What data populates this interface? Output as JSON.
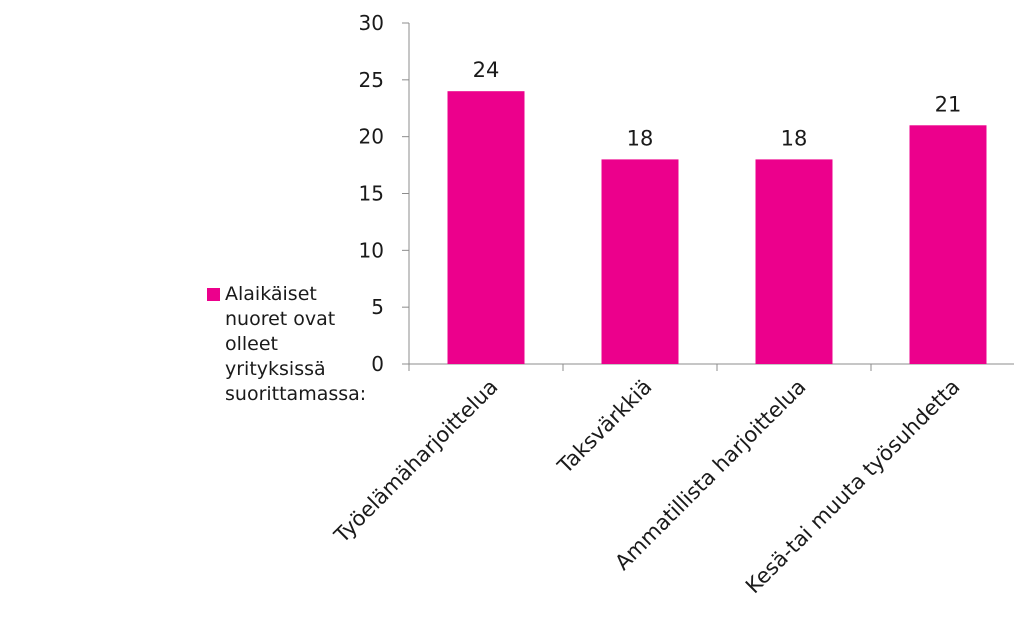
{
  "chart_data": {
    "type": "bar",
    "categories": [
      "Työelämäharjoittelua",
      "Taksvärkkiä",
      "Ammatillista harjoittelua",
      "Kesä-tai muuta työsuhdetta"
    ],
    "series": [
      {
        "name": "Alaikäiset nuoret ovat olleet yrityksissä suorittamassa:",
        "values": [
          24,
          18,
          18,
          21
        ],
        "color": "#ec008c"
      }
    ],
    "title": "",
    "xlabel": "",
    "ylabel": "",
    "ylim": [
      0,
      30
    ],
    "yticks": [
      0,
      5,
      10,
      15,
      20,
      25,
      30
    ],
    "grid": false,
    "data_labels": true,
    "legend_position": "left"
  }
}
